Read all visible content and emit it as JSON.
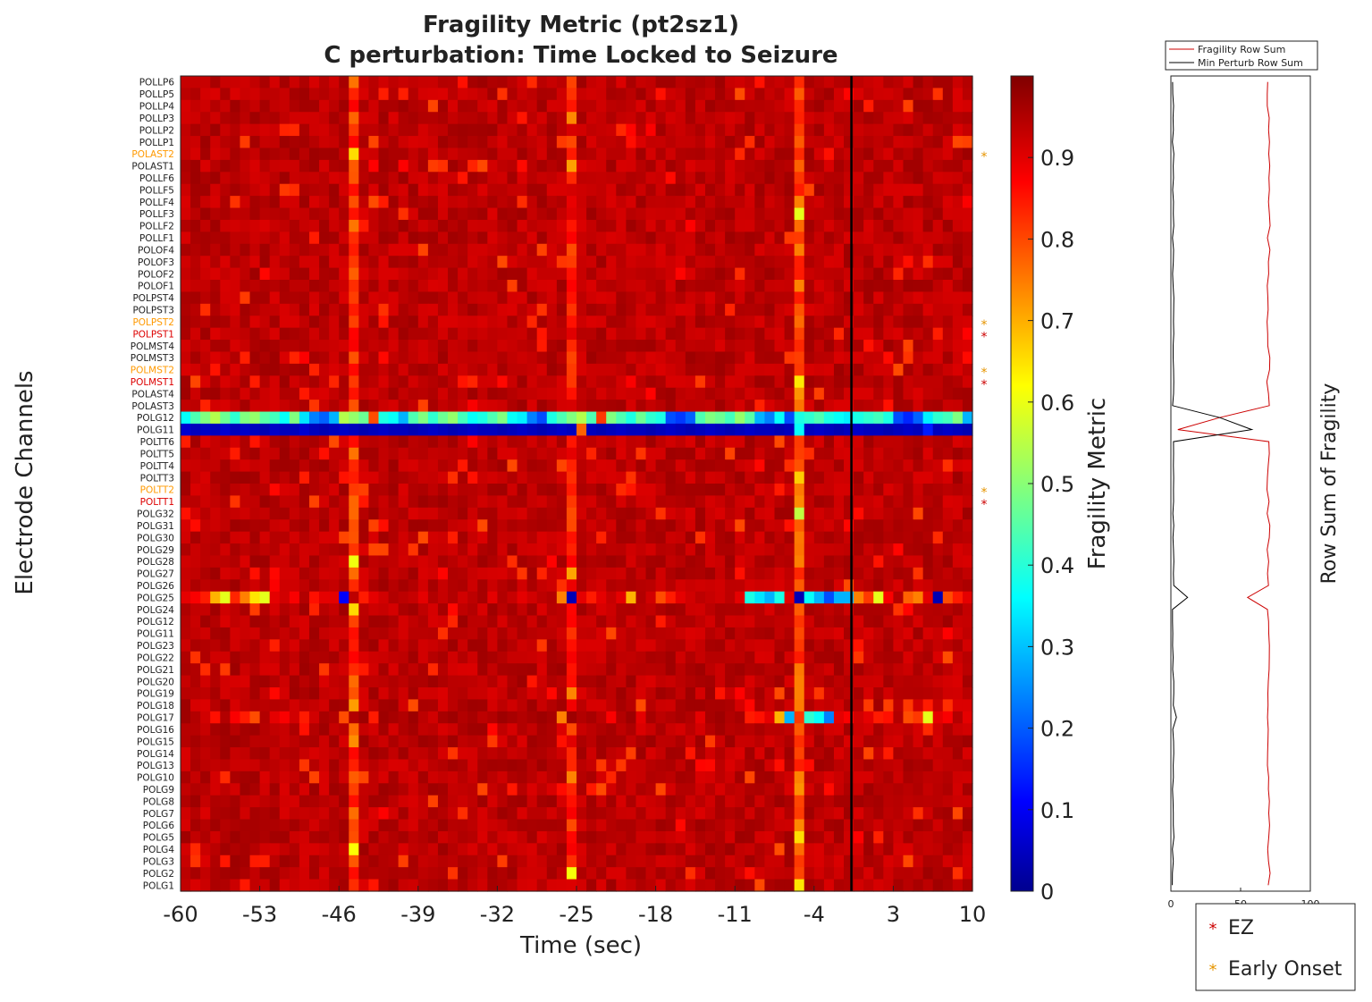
{
  "chart_data": [
    {
      "type": "heatmap",
      "title_line1": "Fragility Metric (pt2sz1)",
      "title_line2": "C perturbation:  Time Locked to Seizure",
      "xlabel": "Time (sec)",
      "ylabel": "Electrode Channels",
      "xlim": [
        -60,
        10
      ],
      "x_ticks": [
        "-60",
        "-53",
        "-46",
        "-39",
        "-32",
        "-25",
        "-18",
        "-11",
        "-4",
        "3",
        "10"
      ],
      "num_time_windows": 80,
      "seizure_onset_marker_time": -0.7,
      "channels": [
        "POLLP6",
        "POLLP5",
        "POLLP4",
        "POLLP3",
        "POLLP2",
        "POLLP1",
        "POLAST2",
        "POLAST1",
        "POLLF6",
        "POLLF5",
        "POLLF4",
        "POLLF3",
        "POLLF2",
        "POLLF1",
        "POLOF4",
        "POLOF3",
        "POLOF2",
        "POLOF1",
        "POLPST4",
        "POLPST3",
        "POLPST2",
        "POLPST1",
        "POLMST4",
        "POLMST3",
        "POLMST2",
        "POLMST1",
        "POLAST4",
        "POLAST3",
        "POLG12",
        "POLG11",
        "POLTT6",
        "POLTT5",
        "POLTT4",
        "POLTT3",
        "POLTT2",
        "POLTT1",
        "POLG32",
        "POLG31",
        "POLG30",
        "POLG29",
        "POLG28",
        "POLG27",
        "POLG26",
        "POLG25",
        "POLG24",
        "POLG12",
        "POLG11",
        "POLG23",
        "POLG22",
        "POLG21",
        "POLG20",
        "POLG19",
        "POLG18",
        "POLG17",
        "POLG16",
        "POLG15",
        "POLG14",
        "POLG13",
        "POLG10",
        "POLG9",
        "POLG8",
        "POLG7",
        "POLG6",
        "POLG5",
        "POLG4",
        "POLG3",
        "POLG2",
        "POLG1"
      ],
      "ez_channels": [
        "POLPST1",
        "POLMST1",
        "POLTT1"
      ],
      "early_onset_channels": [
        "POLAST2",
        "POLPST2",
        "POLMST2",
        "POLTT2"
      ],
      "background_value": 0.97,
      "row_profiles": {
        "POLG12@28": [
          0.38,
          0.45,
          0.5,
          0.55,
          0.48,
          0.42,
          0.5,
          0.52,
          0.46,
          0.44,
          0.38,
          0.5,
          0.35,
          0.25,
          0.22,
          0.3,
          0.55,
          0.52,
          0.48,
          0.8,
          0.4,
          0.38,
          0.3,
          0.45,
          0.5,
          0.42,
          0.48,
          0.52,
          0.44,
          0.38,
          0.4,
          0.45,
          0.5,
          0.38,
          0.36,
          0.25,
          0.2,
          0.4,
          0.45,
          0.5,
          0.55,
          0.45,
          0.82,
          0.5,
          0.45,
          0.4,
          0.48,
          0.42,
          0.4,
          0.2,
          0.18,
          0.22,
          0.45,
          0.5,
          0.48,
          0.44,
          0.52,
          0.46,
          0.3,
          0.25,
          0.38,
          0.2,
          0.4,
          0.42,
          0.45,
          0.4,
          0.38,
          0.36,
          0.4,
          0.42,
          0.44,
          0.4,
          0.2,
          0.16,
          0.22,
          0.36,
          0.42,
          0.44,
          0.5,
          0.3
        ],
        "POLG11@29": [
          0.08,
          0.06,
          0.07,
          0.06,
          0.08,
          0.06,
          0.07,
          0.06,
          0.05,
          0.07,
          0.06,
          0.06,
          0.08,
          0.06,
          0.05,
          0.06,
          0.07,
          0.06,
          0.05,
          0.06,
          0.07,
          0.06,
          0.06,
          0.05,
          0.06,
          0.07,
          0.06,
          0.05,
          0.06,
          0.07,
          0.06,
          0.06,
          0.05,
          0.06,
          0.07,
          0.06,
          0.05,
          0.06,
          0.07,
          0.06,
          0.78,
          0.06,
          0.05,
          0.06,
          0.07,
          0.06,
          0.06,
          0.05,
          0.06,
          0.07,
          0.06,
          0.05,
          0.06,
          0.07,
          0.06,
          0.05,
          0.06,
          0.07,
          0.06,
          0.06,
          0.05,
          0.06,
          0.38,
          0.06,
          0.07,
          0.06,
          0.05,
          0.06,
          0.07,
          0.06,
          0.06,
          0.05,
          0.06,
          0.07,
          0.06,
          0.15,
          0.06,
          0.07,
          0.06,
          0.05
        ],
        "POLG25@43": [
          0.9,
          0.88,
          0.85,
          0.7,
          0.6,
          0.84,
          0.75,
          0.65,
          0.6,
          0.9,
          0.92,
          0.88,
          0.95,
          0.86,
          0.9,
          0.9,
          0.12,
          0.94,
          0.85,
          0.9,
          0.92,
          0.95,
          0.94,
          0.93,
          0.9,
          0.95,
          0.93,
          0.95,
          0.92,
          0.94,
          0.96,
          0.9,
          0.95,
          0.93,
          0.9,
          0.92,
          0.94,
          0.95,
          0.75,
          0.05,
          0.9,
          0.85,
          0.9,
          0.93,
          0.9,
          0.7,
          0.95,
          0.92,
          0.8,
          0.85,
          0.9,
          0.92,
          0.94,
          0.93,
          0.92,
          0.94,
          0.9,
          0.4,
          0.35,
          0.3,
          0.4,
          0.9,
          0.05,
          0.38,
          0.3,
          0.2,
          0.3,
          0.3,
          0.75,
          0.82,
          0.6,
          0.88,
          0.95,
          0.78,
          0.75,
          0.9,
          0.05,
          0.8,
          0.85,
          0.9
        ],
        "POLG17@53": [
          0.97,
          0.95,
          0.92,
          0.86,
          0.95,
          0.88,
          0.85,
          0.8,
          0.95,
          0.9,
          0.88,
          0.92,
          0.85,
          0.92,
          0.96,
          0.95,
          0.8,
          0.95,
          0.97,
          0.85,
          0.97,
          0.96,
          0.95,
          0.97,
          0.94,
          0.92,
          0.96,
          0.97,
          0.95,
          0.96,
          0.94,
          0.95,
          0.97,
          0.96,
          0.95,
          0.96,
          0.97,
          0.96,
          0.75,
          0.97,
          0.95,
          0.96,
          0.94,
          0.88,
          0.95,
          0.97,
          0.9,
          0.96,
          0.94,
          0.95,
          0.96,
          0.95,
          0.9,
          0.96,
          0.97,
          0.95,
          0.96,
          0.85,
          0.86,
          0.9,
          0.7,
          0.3,
          0.82,
          0.42,
          0.38,
          0.25,
          0.9,
          0.88,
          0.92,
          0.9,
          0.85,
          0.86,
          0.95,
          0.8,
          0.82,
          0.6,
          0.9,
          0.88,
          0.95,
          0.9
        ]
      },
      "column_bands": [
        {
          "time_window": 17,
          "value": 0.88
        },
        {
          "time_window": 39,
          "value": 0.92
        },
        {
          "time_window": 62,
          "value": 0.85
        }
      ],
      "colorbar": {
        "label": "Fragility Metric",
        "range": [
          0,
          1
        ],
        "ticks": [
          "0",
          "0.1",
          "0.2",
          "0.3",
          "0.4",
          "0.5",
          "0.6",
          "0.7",
          "0.8",
          "0.9"
        ],
        "colormap": "jet"
      }
    },
    {
      "type": "line",
      "ylabel": "Row Sum of Fragility",
      "xlim": [
        0,
        100
      ],
      "x_ticks": [
        "0",
        "50",
        "100"
      ],
      "series": [
        {
          "name": "Fragility Row Sum",
          "color": "#cc0000",
          "baseline": 70,
          "dips": [
            {
              "row": 28,
              "value": 35
            },
            {
              "row": 29,
              "value": 5
            },
            {
              "row": 43,
              "value": 55
            }
          ]
        },
        {
          "name": "Min Perturb Row Sum",
          "color": "#000000",
          "baseline": 1,
          "spikes": [
            {
              "row": 28,
              "value": 35
            },
            {
              "row": 29,
              "value": 58
            },
            {
              "row": 43,
              "value": 12
            },
            {
              "row": 53,
              "value": 4
            }
          ]
        }
      ]
    }
  ],
  "legend": {
    "items": [
      {
        "label": "EZ",
        "color": "#cc0000"
      },
      {
        "label": "Early Onset",
        "color": "#e69500"
      }
    ]
  }
}
